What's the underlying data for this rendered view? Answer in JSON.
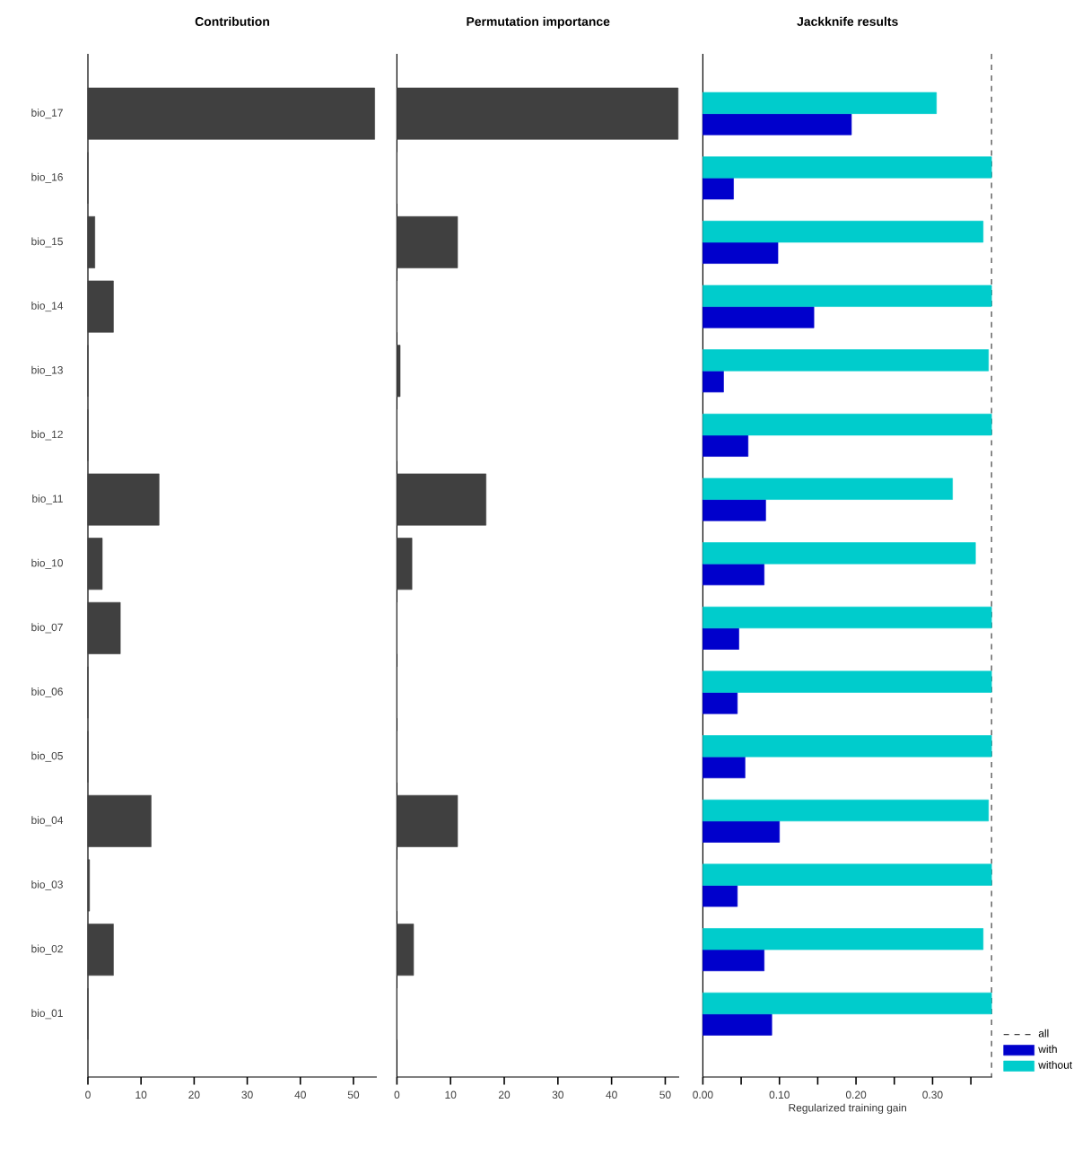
{
  "chart_data": [
    {
      "type": "bar",
      "orientation": "horizontal",
      "title": "Contribution",
      "categories": [
        "bio_17",
        "bio_16",
        "bio_15",
        "bio_14",
        "bio_13",
        "bio_12",
        "bio_11",
        "bio_10",
        "bio_07",
        "bio_06",
        "bio_05",
        "bio_04",
        "bio_03",
        "bio_02",
        "bio_01"
      ],
      "values": [
        54,
        0,
        1.3,
        4.8,
        0,
        0,
        13.4,
        2.7,
        6.1,
        0,
        0,
        11.9,
        0.3,
        4.8,
        0
      ],
      "color": "#404040",
      "xlim": [
        0,
        54.4
      ],
      "xticks": [
        0,
        10,
        20,
        30,
        40,
        50
      ]
    },
    {
      "type": "bar",
      "orientation": "horizontal",
      "title": "Permutation importance",
      "categories": [
        null,
        null,
        null,
        null,
        null,
        null,
        null,
        null,
        null,
        null,
        null,
        null,
        null,
        null,
        null
      ],
      "values": [
        52.4,
        0,
        11.3,
        0,
        0.6,
        0,
        16.6,
        2.8,
        0,
        0,
        0,
        11.3,
        0,
        3.1,
        0
      ],
      "color": "#404040",
      "xlim": [
        0,
        52.6
      ],
      "xticks": [
        0,
        10,
        20,
        30,
        40,
        50
      ],
      "tick_labels": "x"
    },
    {
      "type": "bar",
      "orientation": "horizontal",
      "title": "Jackknife results",
      "xlabel": "Regularized training gain",
      "categories": [
        null,
        null,
        null,
        null,
        null,
        null,
        null,
        null,
        null,
        null,
        null,
        null,
        null,
        null,
        null
      ],
      "series": [
        {
          "name": "with",
          "color": "#0000cc",
          "values": [
            0.194,
            0.04,
            0.098,
            0.145,
            0.027,
            0.059,
            0.082,
            0.08,
            0.047,
            0.045,
            0.055,
            0.1,
            0.045,
            0.08,
            0.09
          ]
        },
        {
          "name": "without",
          "color": "#00cccc",
          "values": [
            0.305,
            0.377,
            0.366,
            0.377,
            0.373,
            0.377,
            0.326,
            0.356,
            0.377,
            0.377,
            0.377,
            0.373,
            0.377,
            0.366,
            0.377
          ]
        }
      ],
      "ref_lines": [
        {
          "axis": "x",
          "value": 0.377,
          "label": "all",
          "color": "#404040",
          "line_style": "dashed"
        }
      ],
      "xlim": [
        0,
        0.378
      ],
      "xticks": [
        {
          "value": 0,
          "label": "0.00"
        },
        {
          "value": 0.05,
          "label": null
        },
        {
          "value": 0.1,
          "label": "0.10"
        },
        {
          "value": 0.15,
          "label": null
        },
        {
          "value": 0.2,
          "label": "0.20"
        },
        {
          "value": 0.25,
          "label": null
        },
        {
          "value": 0.3,
          "label": "0.30"
        },
        {
          "value": 0.35,
          "label": null
        }
      ],
      "legend": "bottom right",
      "tick_labels": "x"
    }
  ]
}
